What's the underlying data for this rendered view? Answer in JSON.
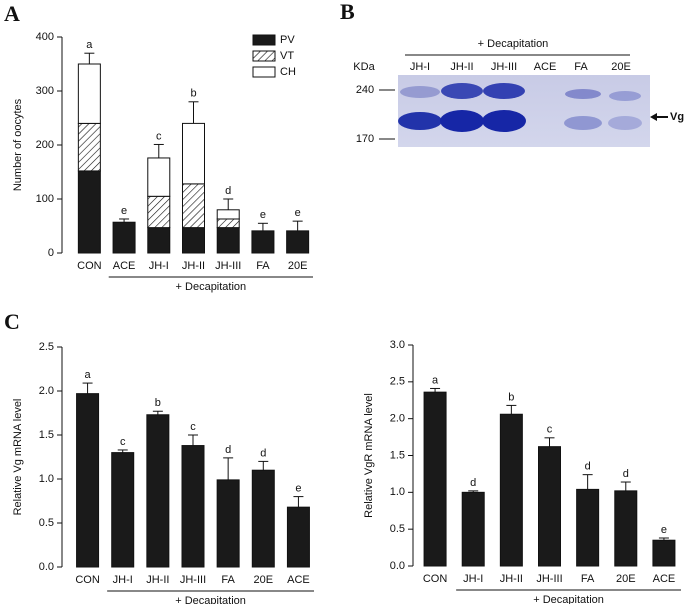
{
  "panel_labels": [
    "A",
    "B",
    "C"
  ],
  "chart_data": [
    {
      "type": "stacked-bar",
      "ylabel": "Number of oocytes",
      "categories": [
        "CON",
        "ACE",
        "JH-I",
        "JH-II",
        "JH-III",
        "FA",
        "20E"
      ],
      "series": [
        {
          "name": "PV",
          "color": "#1a1a1a",
          "values": [
            152,
            57,
            47,
            47,
            47,
            41,
            41
          ]
        },
        {
          "name": "VT",
          "color": "#ffffff",
          "pattern": "hatch",
          "values": [
            88,
            0,
            58,
            81,
            16,
            0,
            0
          ]
        },
        {
          "name": "CH",
          "color": "#ffffff",
          "values": [
            110,
            0,
            71,
            112,
            17,
            0,
            0
          ]
        }
      ],
      "errors": [
        20,
        6,
        25,
        40,
        20,
        14,
        18
      ],
      "letters": [
        "a",
        "e",
        "c",
        "b",
        "d",
        "e",
        "e"
      ],
      "group_label": "+ Decapitation",
      "group_span": [
        1,
        6
      ],
      "ylim": [
        0,
        400
      ],
      "yticks": [
        0,
        100,
        200,
        300,
        400
      ],
      "legend": "top-right"
    },
    {
      "type": "bar",
      "ylabel": "Relative Vg mRNA level",
      "color": "#1a1a1a",
      "categories": [
        "CON",
        "JH-I",
        "JH-II",
        "JH-III",
        "FA",
        "20E",
        "ACE"
      ],
      "values": [
        1.97,
        1.3,
        1.73,
        1.38,
        0.99,
        1.1,
        0.68
      ],
      "errors": [
        0.12,
        0.03,
        0.04,
        0.12,
        0.25,
        0.1,
        0.12
      ],
      "letters": [
        "a",
        "c",
        "b",
        "c",
        "d",
        "d",
        "e"
      ],
      "group_label": "+ Decapitation",
      "group_span": [
        1,
        6
      ],
      "ylim": [
        0,
        2.5
      ],
      "yticks": [
        {
          "value": 0,
          "label": "0.0"
        },
        0.5,
        {
          "value": 1,
          "label": "1.0"
        },
        1.5,
        {
          "value": 2,
          "label": "2.0"
        },
        2.5
      ]
    },
    {
      "type": "bar",
      "ylabel": "Relative VgR mRNA level",
      "color": "#1a1a1a",
      "categories": [
        "CON",
        "JH-I",
        "JH-II",
        "JH-III",
        "FA",
        "20E",
        "ACE"
      ],
      "values": [
        2.36,
        1.0,
        2.06,
        1.62,
        1.04,
        1.02,
        0.35
      ],
      "errors": [
        0.05,
        0.02,
        0.12,
        0.12,
        0.2,
        0.12,
        0.03
      ],
      "letters": [
        "a",
        "d",
        "b",
        "c",
        "d",
        "d",
        "e"
      ],
      "group_label": "+ Decapitation",
      "group_span": [
        1,
        6
      ],
      "ylim": [
        0,
        3
      ],
      "yticks": [
        {
          "value": 0,
          "label": "0.0"
        },
        0.5,
        {
          "value": 1,
          "label": "1.0"
        },
        1.5,
        {
          "value": 2,
          "label": "2.0"
        },
        2.5,
        {
          "value": 3,
          "label": "3.0"
        }
      ]
    }
  ],
  "blot": {
    "header": "+ Decapitation",
    "unit": "KDa",
    "lanes": [
      "JH-I",
      "JH-II",
      "JH-III",
      "ACE",
      "FA",
      "20E"
    ],
    "markers": [
      "240",
      "170"
    ],
    "band_label": "Vg"
  }
}
